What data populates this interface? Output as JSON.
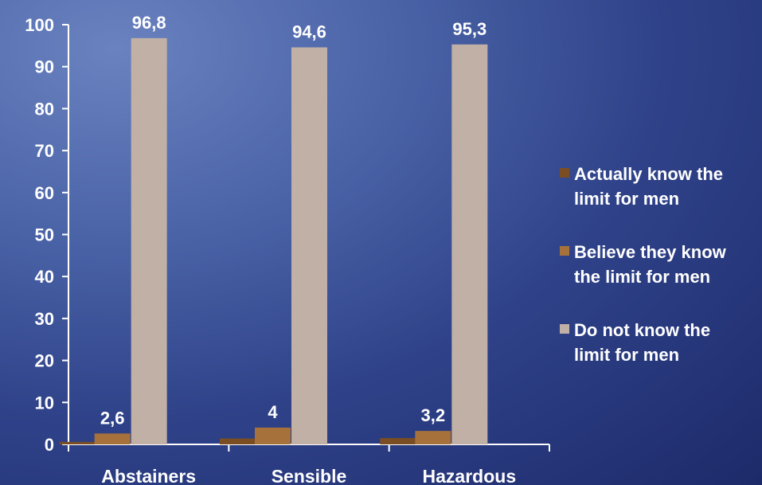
{
  "chart_data": {
    "type": "bar",
    "categories": [
      "Abstainers",
      "Sensible",
      "Hazardous"
    ],
    "series": [
      {
        "name": "Actually know the limit for men",
        "values": [
          0.6,
          1.4,
          1.5
        ],
        "color": "#7a4e22"
      },
      {
        "name": "Believe they know the limit for men",
        "values": [
          2.6,
          4,
          3.2
        ],
        "color": "#a6713a"
      },
      {
        "name": "Do not know the limit for men",
        "values": [
          96.8,
          94.6,
          95.3
        ],
        "color": "#c0b0a6"
      }
    ],
    "data_labels": [
      {
        "series": 1,
        "category": 0,
        "text": "2,6"
      },
      {
        "series": 2,
        "category": 0,
        "text": "96,8"
      },
      {
        "series": 1,
        "category": 1,
        "text": "4"
      },
      {
        "series": 2,
        "category": 1,
        "text": "94,6"
      },
      {
        "series": 1,
        "category": 2,
        "text": "3,2"
      },
      {
        "series": 2,
        "category": 2,
        "text": "95,3"
      }
    ],
    "legend": {
      "placement": "right",
      "entries": [
        [
          "Actually know the",
          "limit for men"
        ],
        [
          "Believe they know",
          "the limit for men"
        ],
        [
          "Do not know the",
          "limit for men"
        ]
      ]
    },
    "y_ticks": [
      "0",
      "10",
      "20",
      "30",
      "40",
      "50",
      "60",
      "70",
      "80",
      "90",
      "100"
    ],
    "ylim": [
      0,
      100
    ],
    "grid": false,
    "title": "",
    "xlabel": "",
    "ylabel": ""
  }
}
